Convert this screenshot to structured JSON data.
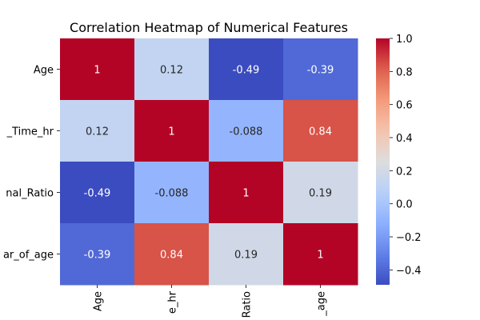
{
  "chart_data": {
    "type": "heatmap",
    "title": "Correlation Heatmap of Numerical Features",
    "row_labels": [
      "Age",
      "_Time_hr",
      "nal_Ratio",
      "ar_of_age"
    ],
    "col_labels": [
      "Age",
      "e_hr",
      "Ratio",
      "_age"
    ],
    "values": [
      [
        1,
        0.12,
        -0.49,
        -0.39
      ],
      [
        0.12,
        1,
        -0.088,
        0.84
      ],
      [
        -0.49,
        -0.088,
        1,
        0.19
      ],
      [
        -0.39,
        0.84,
        0.19,
        1
      ]
    ],
    "annotations": [
      [
        "1",
        "0.12",
        "-0.49",
        "-0.39"
      ],
      [
        "0.12",
        "1",
        "-0.088",
        "0.84"
      ],
      [
        "-0.49",
        "-0.088",
        "1",
        "0.19"
      ],
      [
        "-0.39",
        "0.84",
        "0.19",
        "1"
      ]
    ],
    "colormap": "coolwarm",
    "colorbar": {
      "range": [
        -0.49,
        1
      ],
      "ticks": [
        -0.4,
        -0.2,
        0.0,
        0.2,
        0.4,
        0.6,
        0.8,
        1.0
      ],
      "tick_labels": [
        "−0.4",
        "−0.2",
        "0.0",
        "0.2",
        "0.4",
        "0.6",
        "0.8",
        "1.0"
      ]
    }
  }
}
